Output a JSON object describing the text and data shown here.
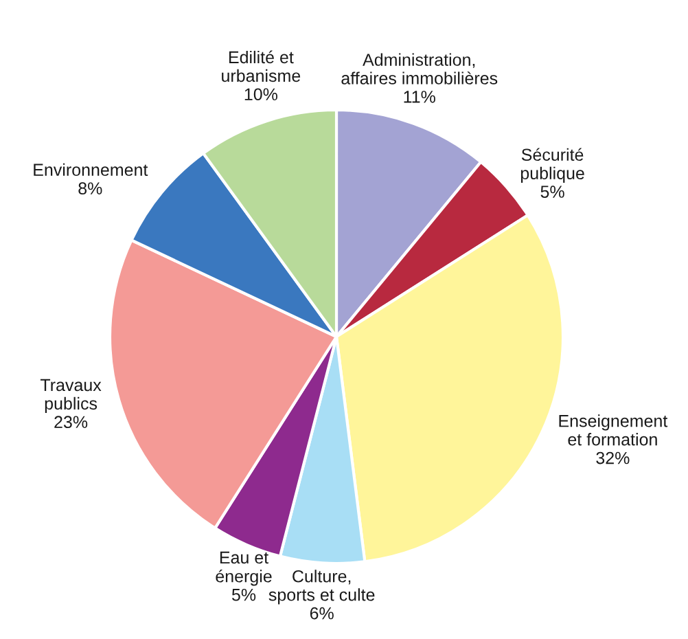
{
  "chart_data": {
    "type": "pie",
    "categories": [
      "Administration,\naffaires immobilières",
      "Sécurité\npublique",
      "Enseignement\net formation",
      "Culture,\nsports et culte",
      "Eau et\nénergie",
      "Travaux\npublics",
      "Environnement",
      "Edilité et\nurbanisme"
    ],
    "values": [
      11,
      5,
      32,
      6,
      5,
      23,
      8,
      10
    ],
    "value_labels": [
      "11%",
      "5%",
      "32%",
      "6%",
      "5%",
      "23%",
      "8%",
      "10%"
    ],
    "colors": [
      "#a3a3d3",
      "#b8293f",
      "#fff59a",
      "#a8def5",
      "#8e2a8e",
      "#f49a96",
      "#3a78bf",
      "#b8da9a"
    ]
  }
}
